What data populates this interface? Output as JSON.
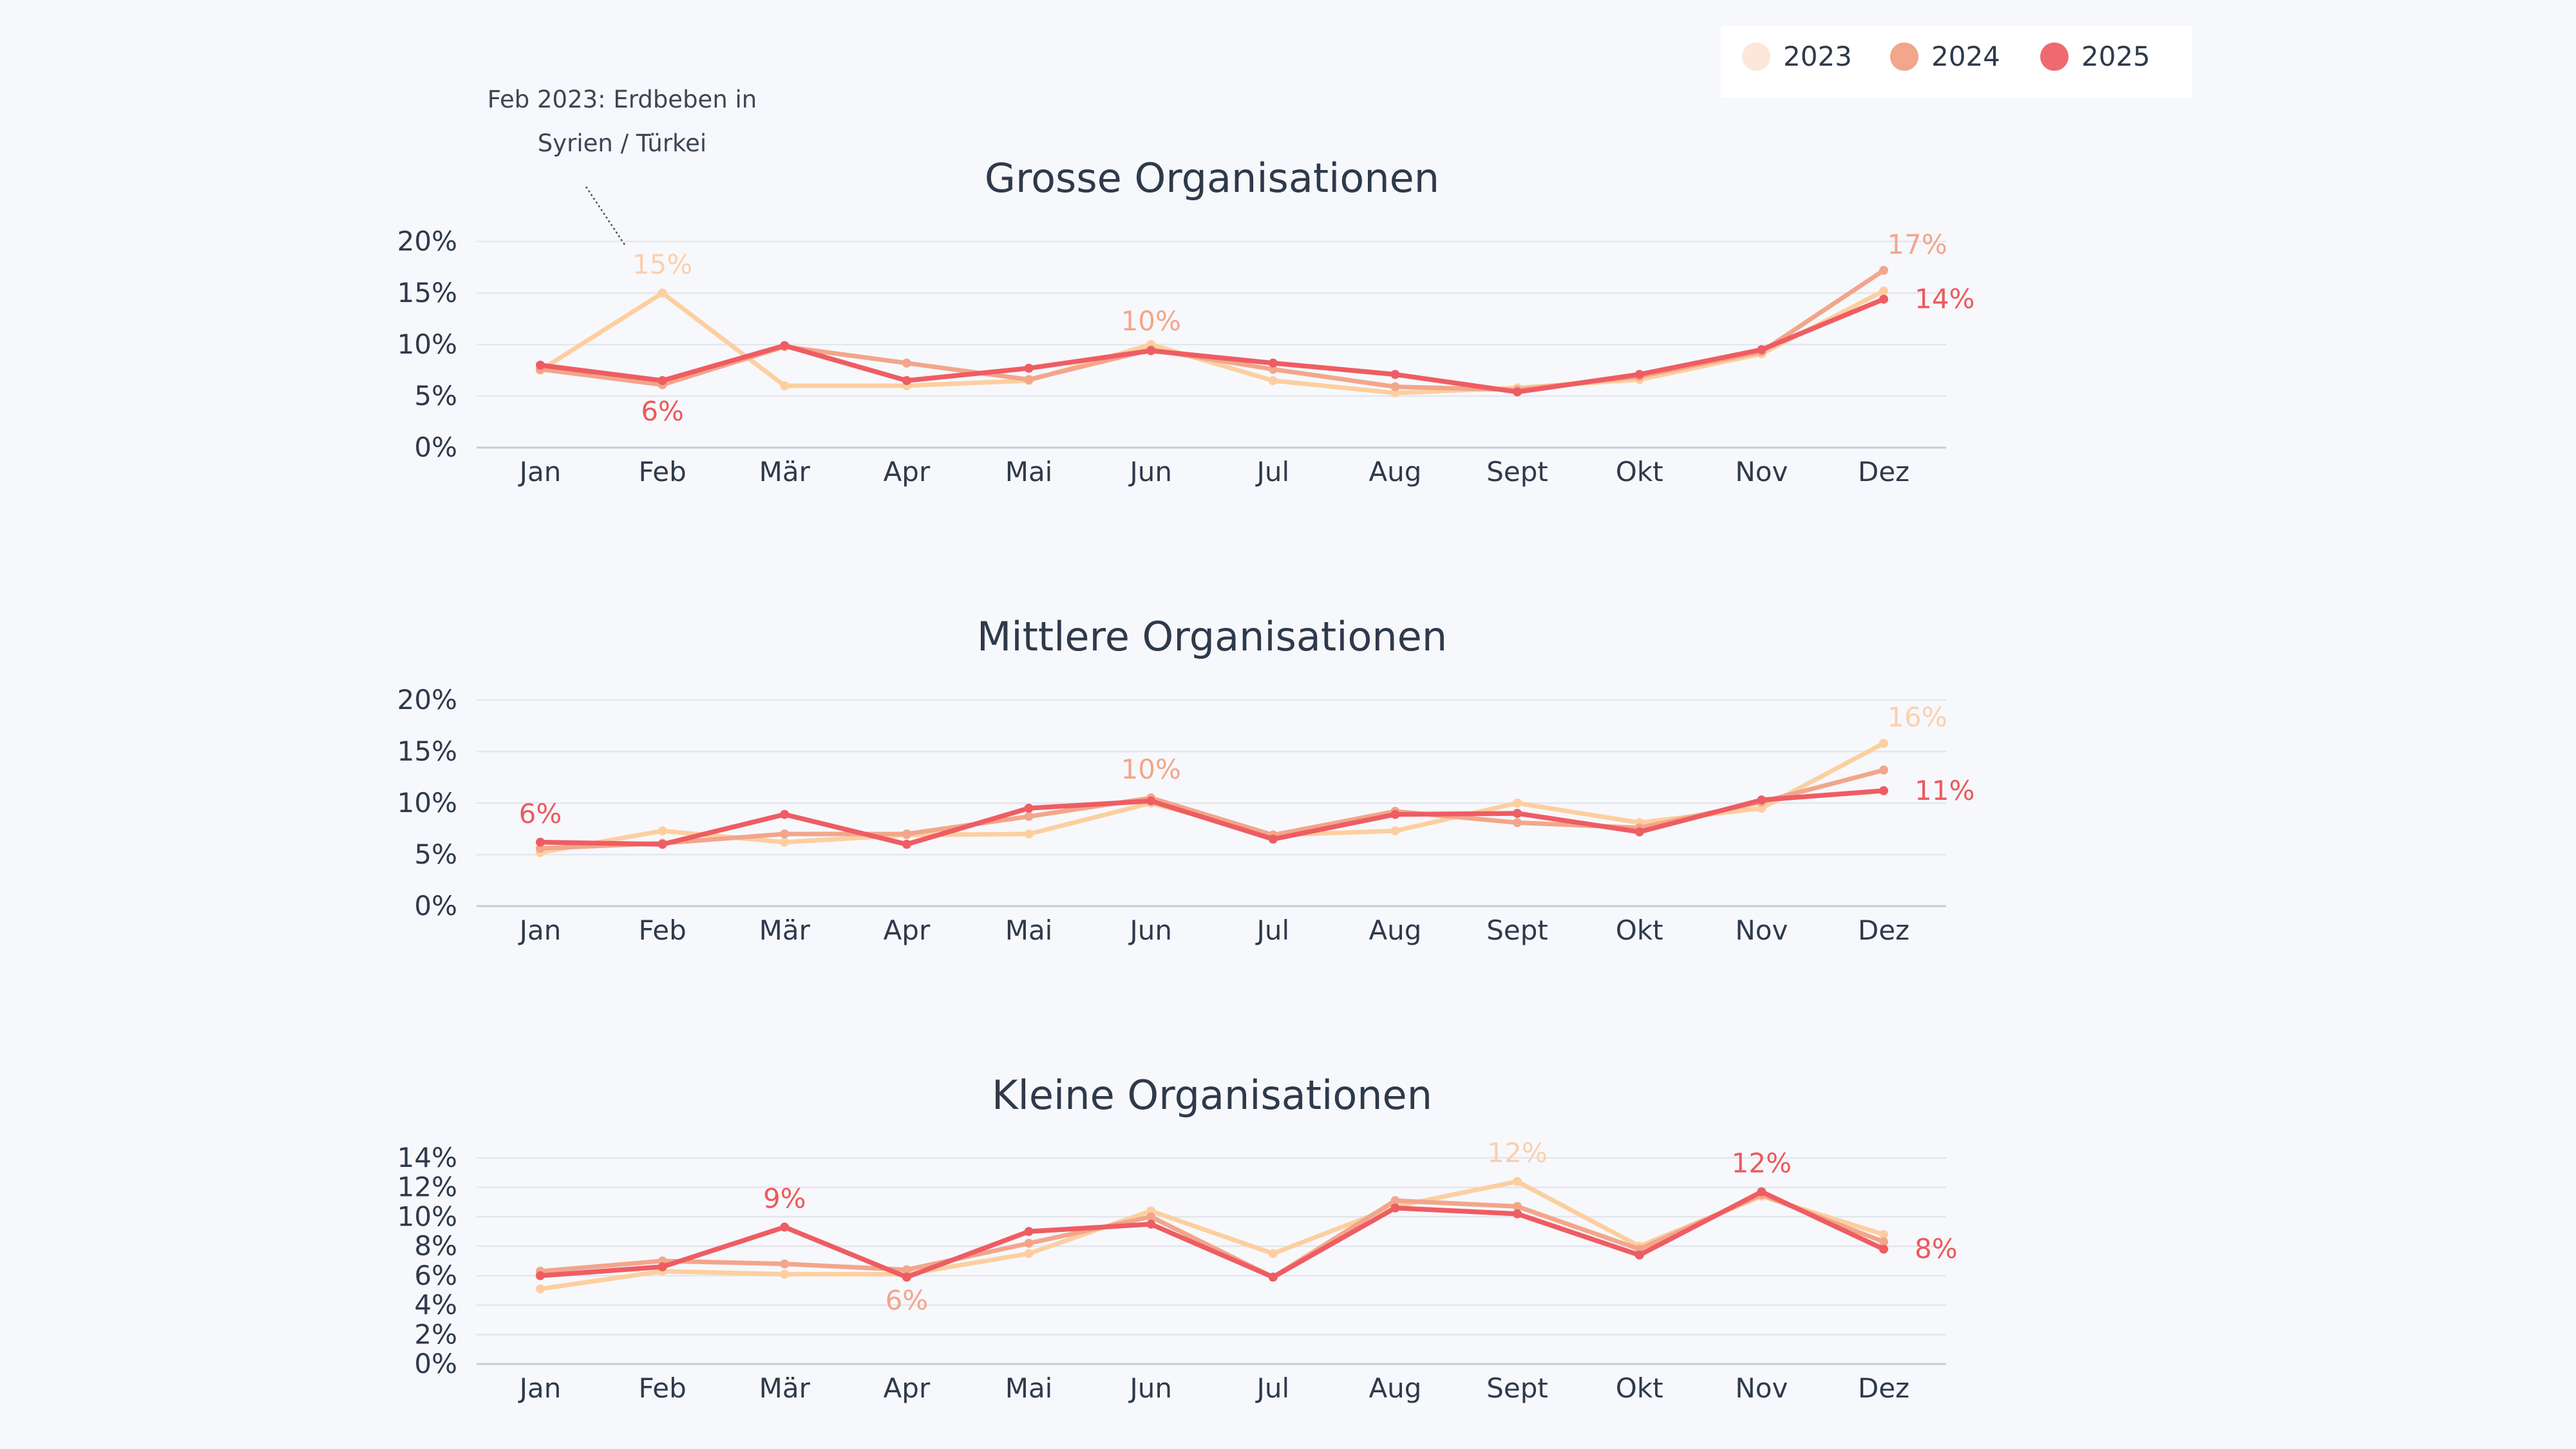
{
  "chart_data": [
    {
      "type": "line",
      "title": "Grosse Organisationen",
      "categories": [
        "Jan",
        "Feb",
        "Mär",
        "Apr",
        "Mai",
        "Jun",
        "Jul",
        "Aug",
        "Sept",
        "Okt",
        "Nov",
        "Dez"
      ],
      "yticks": [
        "0%",
        "5%",
        "10%",
        "15%",
        "20%"
      ],
      "ylim": [
        0,
        20
      ],
      "series": [
        {
          "name": "2023",
          "values": [
            7.5,
            15.0,
            6.0,
            6.0,
            6.5,
            10.0,
            6.5,
            5.3,
            5.8,
            6.6,
            9.1,
            15.2
          ]
        },
        {
          "name": "2024",
          "values": [
            7.6,
            6.1,
            9.8,
            8.2,
            6.6,
            9.5,
            7.6,
            5.9,
            5.6,
            6.9,
            9.3,
            17.2
          ]
        },
        {
          "name": "2025",
          "values": [
            8.0,
            6.5,
            9.9,
            6.5,
            7.7,
            9.4,
            8.2,
            7.1,
            5.4,
            7.1,
            9.5,
            14.4
          ]
        }
      ],
      "labels": [
        {
          "series": 0,
          "index": 1,
          "text": "15%",
          "pos": "above"
        },
        {
          "series": 2,
          "index": 1,
          "text": "6%",
          "pos": "below"
        },
        {
          "series": 1,
          "index": 5,
          "text": "10%",
          "pos": "above"
        },
        {
          "series": 1,
          "index": 11,
          "text": "17%",
          "pos": "above-right"
        },
        {
          "series": 2,
          "index": 11,
          "text": "14%",
          "pos": "right"
        }
      ],
      "annotation": {
        "lines": [
          "Feb 2023: Erdbeben in",
          "Syrien / Türkei"
        ]
      }
    },
    {
      "type": "line",
      "title": "Mittlere Organisationen",
      "categories": [
        "Jan",
        "Feb",
        "Mär",
        "Apr",
        "Mai",
        "Jun",
        "Jul",
        "Aug",
        "Sept",
        "Okt",
        "Nov",
        "Dez"
      ],
      "yticks": [
        "0%",
        "5%",
        "10%",
        "15%",
        "20%"
      ],
      "ylim": [
        0,
        20
      ],
      "series": [
        {
          "name": "2023",
          "values": [
            5.2,
            7.3,
            6.2,
            6.9,
            7.0,
            10.0,
            6.9,
            7.3,
            10.0,
            8.1,
            9.5,
            15.8
          ]
        },
        {
          "name": "2024",
          "values": [
            5.6,
            6.1,
            7.0,
            7.0,
            8.7,
            10.5,
            6.9,
            9.2,
            8.1,
            7.6,
            10.1,
            13.2
          ]
        },
        {
          "name": "2025",
          "values": [
            6.2,
            6.0,
            8.9,
            6.0,
            9.5,
            10.2,
            6.5,
            8.9,
            9.0,
            7.2,
            10.3,
            11.2
          ]
        }
      ],
      "labels": [
        {
          "series": 2,
          "index": 0,
          "text": "6%",
          "pos": "above"
        },
        {
          "series": 1,
          "index": 5,
          "text": "10%",
          "pos": "above"
        },
        {
          "series": 0,
          "index": 11,
          "text": "16%",
          "pos": "above-right"
        },
        {
          "series": 2,
          "index": 11,
          "text": "11%",
          "pos": "right"
        }
      ]
    },
    {
      "type": "line",
      "title": "Kleine Organisationen",
      "categories": [
        "Jan",
        "Feb",
        "Mär",
        "Apr",
        "Mai",
        "Jun",
        "Jul",
        "Aug",
        "Sept",
        "Okt",
        "Nov",
        "Dez"
      ],
      "yticks": [
        "0%",
        "2%",
        "4%",
        "6%",
        "8%",
        "10%",
        "12%",
        "14%"
      ],
      "ylim": [
        0,
        14
      ],
      "series": [
        {
          "name": "2023",
          "values": [
            5.1,
            6.3,
            6.1,
            6.1,
            7.5,
            10.4,
            7.5,
            10.7,
            12.4,
            8.0,
            11.4,
            8.8
          ]
        },
        {
          "name": "2024",
          "values": [
            6.3,
            7.0,
            6.8,
            6.4,
            8.2,
            10.0,
            5.9,
            11.1,
            10.7,
            7.8,
            11.5,
            8.3
          ]
        },
        {
          "name": "2025",
          "values": [
            6.0,
            6.6,
            9.3,
            5.9,
            9.0,
            9.5,
            5.9,
            10.6,
            10.2,
            7.4,
            11.7,
            7.8
          ]
        }
      ],
      "labels": [
        {
          "series": 2,
          "index": 2,
          "text": "9%",
          "pos": "above"
        },
        {
          "series": 1,
          "index": 3,
          "text": "6%",
          "pos": "below"
        },
        {
          "series": 0,
          "index": 8,
          "text": "12%",
          "pos": "above"
        },
        {
          "series": 2,
          "index": 10,
          "text": "12%",
          "pos": "above"
        },
        {
          "series": 2,
          "index": 11,
          "text": "8%",
          "pos": "right"
        }
      ]
    }
  ],
  "legend": {
    "placement": "top-right",
    "items": [
      {
        "label": "2023",
        "color": "#fde7da"
      },
      {
        "label": "2024",
        "color": "#f2a68b"
      },
      {
        "label": "2025",
        "color": "#ee6a6f"
      }
    ]
  },
  "colors": {
    "line": [
      "#fdcf9f",
      "#f2a68b",
      "#ee5d63"
    ],
    "label": [
      "#fbd0ad",
      "#f2a68b",
      "#ec5a5e"
    ]
  }
}
